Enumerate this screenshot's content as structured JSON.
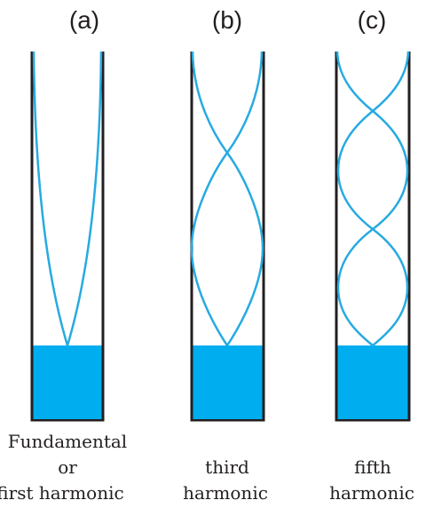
{
  "figure": {
    "panels": [
      {
        "id": "a",
        "label": "(a)",
        "caption_lines": [
          "Fundamental",
          "or",
          "first harmonic"
        ],
        "harmonic_number": 1
      },
      {
        "id": "b",
        "label": "(b)",
        "caption_lines": [
          "third",
          "harmonic"
        ],
        "harmonic_number": 3
      },
      {
        "id": "c",
        "label": "(c)",
        "caption_lines": [
          "fifth",
          "harmonic"
        ],
        "harmonic_number": 5
      }
    ]
  },
  "colors": {
    "water": "#00aeef",
    "wave": "#27aae1",
    "wall": "#231f20"
  }
}
